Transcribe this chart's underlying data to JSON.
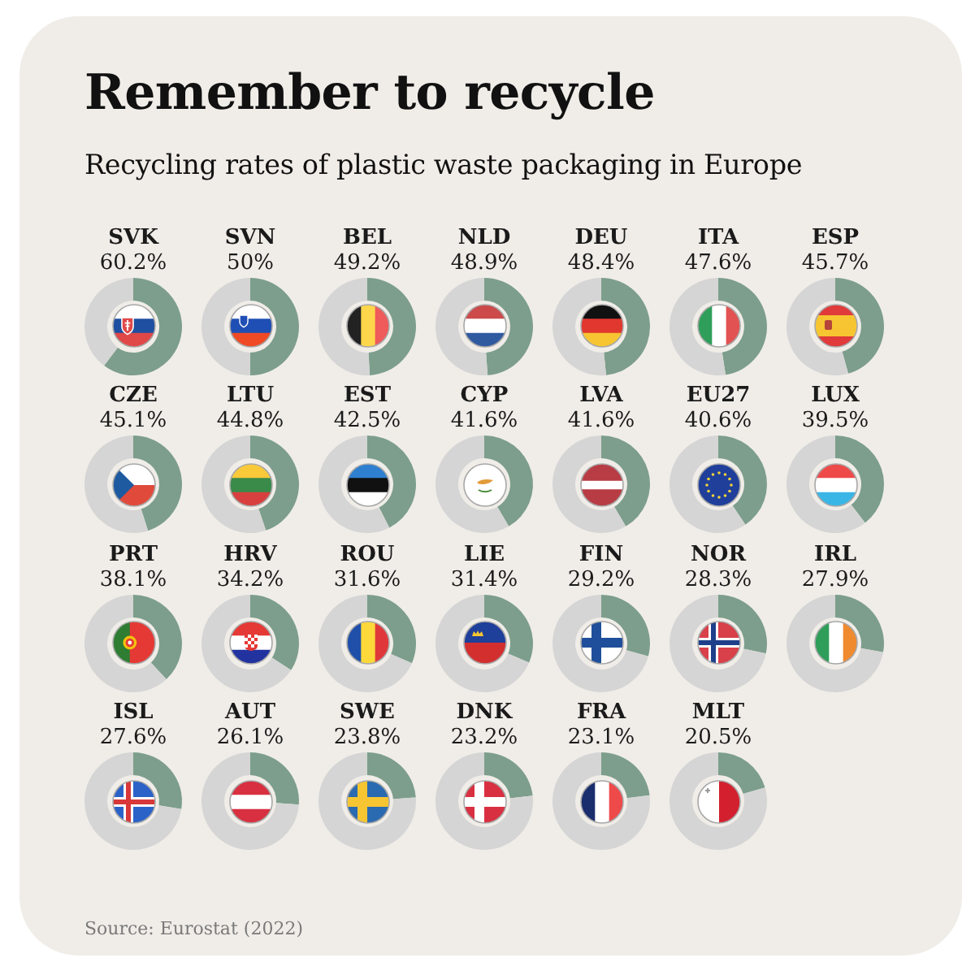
{
  "chart_data": [
    {
      "type": "other",
      "title": "Remember to recycle",
      "subtitle": "Recycling rates of plastic waste packaging in Europe",
      "annotations": [
        "Source: Eurostat (2022)"
      ]
    },
    {
      "type": "donut",
      "title": "SVK",
      "categories": [
        null,
        null
      ],
      "values": [
        60.2,
        39.8
      ],
      "colors": [
        "#7d9e8c",
        "#d5d5d5"
      ],
      "value_labels": [
        "60.2%",
        null
      ]
    },
    {
      "type": "donut",
      "title": "SVN",
      "categories": [
        null,
        null
      ],
      "values": [
        50,
        50
      ],
      "colors": [
        "#7d9e8c",
        "#d5d5d5"
      ],
      "value_labels": [
        "50%",
        null
      ]
    },
    {
      "type": "donut",
      "title": "BEL",
      "categories": [
        null,
        null
      ],
      "values": [
        49.2,
        50.8
      ],
      "colors": [
        "#7d9e8c",
        "#d5d5d5"
      ],
      "value_labels": [
        "49.2%",
        null
      ]
    },
    {
      "type": "donut",
      "title": "NLD",
      "categories": [
        null,
        null
      ],
      "values": [
        48.9,
        51.1
      ],
      "colors": [
        "#7d9e8c",
        "#d5d5d5"
      ],
      "value_labels": [
        "48.9%",
        null
      ]
    },
    {
      "type": "donut",
      "title": "DEU",
      "categories": [
        null,
        null
      ],
      "values": [
        48.4,
        51.6
      ],
      "colors": [
        "#7d9e8c",
        "#d5d5d5"
      ],
      "value_labels": [
        "48.4%",
        null
      ]
    },
    {
      "type": "donut",
      "title": "ITA",
      "categories": [
        null,
        null
      ],
      "values": [
        47.6,
        52.4
      ],
      "colors": [
        "#7d9e8c",
        "#d5d5d5"
      ],
      "value_labels": [
        "47.6%",
        null
      ]
    },
    {
      "type": "donut",
      "title": "ESP",
      "categories": [
        null,
        null
      ],
      "values": [
        45.7,
        54.3
      ],
      "colors": [
        "#7d9e8c",
        "#d5d5d5"
      ],
      "value_labels": [
        "45.7%",
        null
      ]
    },
    {
      "type": "donut",
      "title": "CZE",
      "categories": [
        null,
        null
      ],
      "values": [
        45.1,
        54.9
      ],
      "colors": [
        "#7d9e8c",
        "#d5d5d5"
      ],
      "value_labels": [
        "45.1%",
        null
      ]
    },
    {
      "type": "donut",
      "title": "LTU",
      "categories": [
        null,
        null
      ],
      "values": [
        44.8,
        55.2
      ],
      "colors": [
        "#7d9e8c",
        "#d5d5d5"
      ],
      "value_labels": [
        "44.8%",
        null
      ]
    },
    {
      "type": "donut",
      "title": "EST",
      "categories": [
        null,
        null
      ],
      "values": [
        42.5,
        57.5
      ],
      "colors": [
        "#7d9e8c",
        "#d5d5d5"
      ],
      "value_labels": [
        "42.5%",
        null
      ]
    },
    {
      "type": "donut",
      "title": "CYP",
      "categories": [
        null,
        null
      ],
      "values": [
        41.6,
        58.4
      ],
      "colors": [
        "#7d9e8c",
        "#d5d5d5"
      ],
      "value_labels": [
        "41.6%",
        null
      ]
    },
    {
      "type": "donut",
      "title": "LVA",
      "categories": [
        null,
        null
      ],
      "values": [
        41.6,
        58.4
      ],
      "colors": [
        "#7d9e8c",
        "#d5d5d5"
      ],
      "value_labels": [
        "41.6%",
        null
      ]
    },
    {
      "type": "donut",
      "title": "EU27",
      "categories": [
        null,
        null
      ],
      "values": [
        40.6,
        59.4
      ],
      "colors": [
        "#7d9e8c",
        "#d5d5d5"
      ],
      "value_labels": [
        "40.6%",
        null
      ]
    },
    {
      "type": "donut",
      "title": "LUX",
      "categories": [
        null,
        null
      ],
      "values": [
        39.5,
        60.5
      ],
      "colors": [
        "#7d9e8c",
        "#d5d5d5"
      ],
      "value_labels": [
        "39.5%",
        null
      ]
    },
    {
      "type": "donut",
      "title": "PRT",
      "categories": [
        null,
        null
      ],
      "values": [
        38.1,
        61.9
      ],
      "colors": [
        "#7d9e8c",
        "#d5d5d5"
      ],
      "value_labels": [
        "38.1%",
        null
      ]
    },
    {
      "type": "donut",
      "title": "HRV",
      "categories": [
        null,
        null
      ],
      "values": [
        34.2,
        65.8
      ],
      "colors": [
        "#7d9e8c",
        "#d5d5d5"
      ],
      "value_labels": [
        "34.2%",
        null
      ]
    },
    {
      "type": "donut",
      "title": "ROU",
      "categories": [
        null,
        null
      ],
      "values": [
        31.6,
        68.4
      ],
      "colors": [
        "#7d9e8c",
        "#d5d5d5"
      ],
      "value_labels": [
        "31.6%",
        null
      ]
    },
    {
      "type": "donut",
      "title": "LIE",
      "categories": [
        null,
        null
      ],
      "values": [
        31.4,
        68.6
      ],
      "colors": [
        "#7d9e8c",
        "#d5d5d5"
      ],
      "value_labels": [
        "31.4%",
        null
      ]
    },
    {
      "type": "donut",
      "title": "FIN",
      "categories": [
        null,
        null
      ],
      "values": [
        29.2,
        70.8
      ],
      "colors": [
        "#7d9e8c",
        "#d5d5d5"
      ],
      "value_labels": [
        "29.2%",
        null
      ]
    },
    {
      "type": "donut",
      "title": "NOR",
      "categories": [
        null,
        null
      ],
      "values": [
        28.3,
        71.7
      ],
      "colors": [
        "#7d9e8c",
        "#d5d5d5"
      ],
      "value_labels": [
        "28.3%",
        null
      ]
    },
    {
      "type": "donut",
      "title": "IRL",
      "categories": [
        null,
        null
      ],
      "values": [
        27.9,
        72.1
      ],
      "colors": [
        "#7d9e8c",
        "#d5d5d5"
      ],
      "value_labels": [
        "27.9%",
        null
      ]
    },
    {
      "type": "donut",
      "title": "ISL",
      "categories": [
        null,
        null
      ],
      "values": [
        27.6,
        72.4
      ],
      "colors": [
        "#7d9e8c",
        "#d5d5d5"
      ],
      "value_labels": [
        "27.6%",
        null
      ]
    },
    {
      "type": "donut",
      "title": "AUT",
      "categories": [
        null,
        null
      ],
      "values": [
        26.1,
        73.9
      ],
      "colors": [
        "#7d9e8c",
        "#d5d5d5"
      ],
      "value_labels": [
        "26.1%",
        null
      ]
    },
    {
      "type": "donut",
      "title": "SWE",
      "categories": [
        null,
        null
      ],
      "values": [
        23.8,
        76.2
      ],
      "colors": [
        "#7d9e8c",
        "#d5d5d5"
      ],
      "value_labels": [
        "23.8%",
        null
      ]
    },
    {
      "type": "donut",
      "title": "DNK",
      "categories": [
        null,
        null
      ],
      "values": [
        23.2,
        76.8
      ],
      "colors": [
        "#7d9e8c",
        "#d5d5d5"
      ],
      "value_labels": [
        "23.2%",
        null
      ]
    },
    {
      "type": "donut",
      "title": "FRA",
      "categories": [
        null,
        null
      ],
      "values": [
        23.1,
        76.9
      ],
      "colors": [
        "#7d9e8c",
        "#d5d5d5"
      ],
      "value_labels": [
        "23.1%",
        null
      ]
    },
    {
      "type": "donut",
      "title": "MLT",
      "categories": [
        null,
        null
      ],
      "values": [
        20.5,
        79.5
      ],
      "colors": [
        "#7d9e8c",
        "#d5d5d5"
      ],
      "value_labels": [
        "20.5%",
        null
      ]
    }
  ]
}
